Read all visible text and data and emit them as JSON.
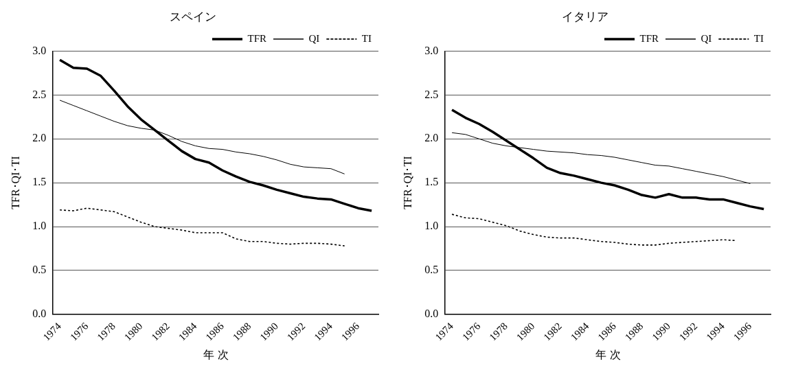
{
  "chart_data": [
    {
      "type": "line",
      "title": "スペイン",
      "xlabel": "年 次",
      "ylabel": "TFR･QI･TI",
      "categories": [
        "1974",
        null,
        "1976",
        null,
        "1978",
        null,
        "1980",
        null,
        "1982",
        null,
        "1984",
        null,
        "1986",
        null,
        "1988",
        null,
        "1990",
        null,
        "1992",
        null,
        "1994",
        null,
        "1996",
        null
      ],
      "series": [
        {
          "name": "TFR",
          "color": "#000000",
          "line_style": "solid",
          "values": [
            2.9,
            2.81,
            2.8,
            2.72,
            2.55,
            2.37,
            2.22,
            2.1,
            1.98,
            1.86,
            1.77,
            1.73,
            1.64,
            1.57,
            1.51,
            1.47,
            1.42,
            1.38,
            1.34,
            1.32,
            1.31,
            1.26,
            1.21,
            1.18
          ]
        },
        {
          "name": "QI",
          "color": "#000000",
          "line_style": "solid",
          "values": [
            2.44,
            2.38,
            2.32,
            2.26,
            2.2,
            2.15,
            2.12,
            2.1,
            2.04,
            1.97,
            1.92,
            1.89,
            1.88,
            1.85,
            1.83,
            1.8,
            1.76,
            1.71,
            1.68,
            1.67,
            1.66,
            1.6,
            null,
            null
          ]
        },
        {
          "name": "TI",
          "color": "#000000",
          "line_style": "dotted",
          "values": [
            1.19,
            1.18,
            1.21,
            1.19,
            1.17,
            1.11,
            1.05,
            1.0,
            0.98,
            0.96,
            0.93,
            0.93,
            0.93,
            0.86,
            0.83,
            0.83,
            0.81,
            0.8,
            0.81,
            0.81,
            0.8,
            0.78,
            null,
            null
          ]
        }
      ],
      "ylim": [
        0,
        3
      ],
      "yticks": [
        {
          "value": 0,
          "label": "0.0"
        },
        {
          "value": 0.5,
          "label": "0.5"
        },
        {
          "value": 1,
          "label": "1.0"
        },
        {
          "value": 1.5,
          "label": "1.5"
        },
        {
          "value": 2,
          "label": "2.0"
        },
        {
          "value": 2.5,
          "label": "2.5"
        },
        {
          "value": 3,
          "label": "3.0"
        }
      ],
      "grid": "y",
      "legend": "top right",
      "marker": "none"
    },
    {
      "type": "line",
      "title": "イタリア",
      "xlabel": "年 次",
      "ylabel": "TFR･QI･TI",
      "categories": [
        "1974",
        null,
        "1976",
        null,
        "1978",
        null,
        "1980",
        null,
        "1982",
        null,
        "1984",
        null,
        "1986",
        null,
        "1988",
        null,
        "1990",
        null,
        "1992",
        null,
        "1994",
        null,
        "1996",
        null
      ],
      "series": [
        {
          "name": "TFR",
          "color": "#000000",
          "line_style": "solid",
          "values": [
            2.33,
            2.24,
            2.17,
            2.08,
            1.98,
            1.88,
            1.78,
            1.67,
            1.61,
            1.58,
            1.54,
            1.5,
            1.47,
            1.42,
            1.36,
            1.33,
            1.37,
            1.33,
            1.33,
            1.31,
            1.31,
            1.27,
            1.23,
            1.2
          ]
        },
        {
          "name": "QI",
          "color": "#000000",
          "line_style": "solid",
          "values": [
            2.07,
            2.05,
            2.0,
            1.95,
            1.92,
            1.9,
            1.88,
            1.86,
            1.85,
            1.84,
            1.82,
            1.81,
            1.79,
            1.76,
            1.73,
            1.7,
            1.69,
            1.66,
            1.63,
            1.6,
            1.57,
            1.53,
            1.49,
            null
          ]
        },
        {
          "name": "TI",
          "color": "#000000",
          "line_style": "dotted",
          "values": [
            1.14,
            1.1,
            1.09,
            1.05,
            1.01,
            0.95,
            0.91,
            0.88,
            0.87,
            0.87,
            0.85,
            0.83,
            0.82,
            0.8,
            0.79,
            0.79,
            0.81,
            0.82,
            0.83,
            0.84,
            0.85,
            0.84,
            null,
            null
          ]
        }
      ],
      "ylim": [
        0,
        3
      ],
      "yticks": [
        {
          "value": 0,
          "label": "0.0"
        },
        {
          "value": 0.5,
          "label": "0.5"
        },
        {
          "value": 1,
          "label": "1.0"
        },
        {
          "value": 1.5,
          "label": "1.5"
        },
        {
          "value": 2,
          "label": "2.0"
        },
        {
          "value": 2.5,
          "label": "2.5"
        },
        {
          "value": 3,
          "label": "3.0"
        }
      ],
      "grid": "y",
      "legend": "top right",
      "marker": "none"
    }
  ]
}
